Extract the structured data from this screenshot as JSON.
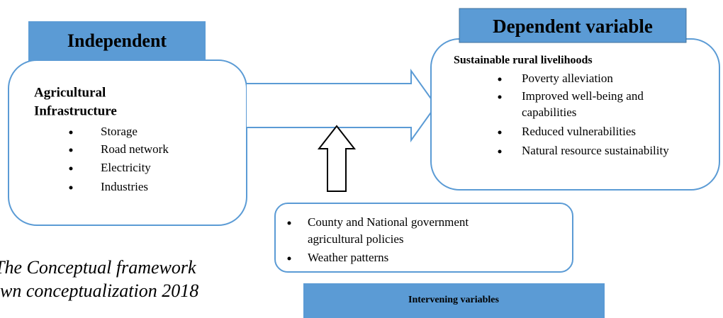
{
  "independent": {
    "heading": "Independent",
    "title_lines": [
      "Agricultural",
      "Infrastructure"
    ],
    "items": [
      "Storage",
      "Road network",
      "Electricity",
      "Industries"
    ]
  },
  "dependent": {
    "heading": "Dependent variable",
    "title": "Sustainable rural livelihoods",
    "items": [
      "Poverty alleviation",
      "Improved well-being and",
      "capabilities",
      "Reduced vulnerabilities",
      "Natural resource sustainability"
    ]
  },
  "intervening": {
    "heading": "Intervening variables",
    "items": [
      "County and National government",
      "agricultural policies",
      "Weather patterns"
    ]
  },
  "caption": [
    "The Conceptual framework",
    "wn conceptualization 2018"
  ]
}
